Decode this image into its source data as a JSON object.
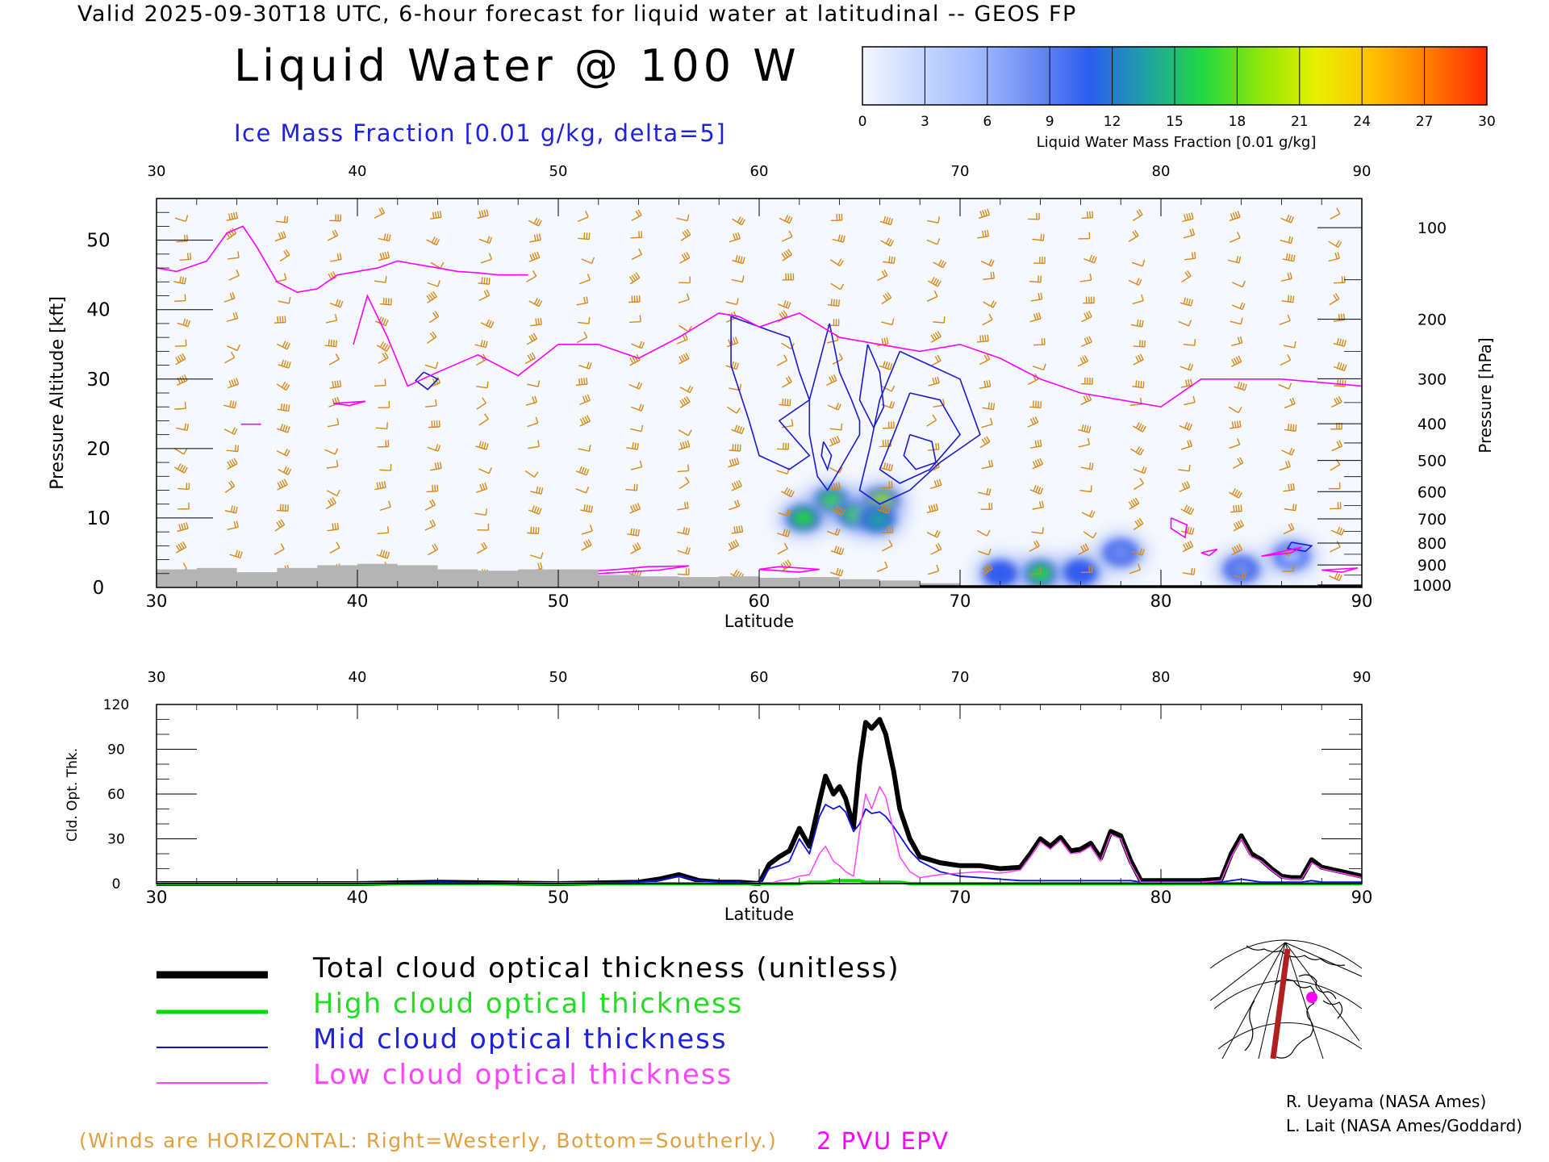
{
  "header": {
    "valid_line": "Valid 2025-09-30T18 UTC, 6-hour forecast for liquid water at latitudinal -- GEOS FP",
    "main_title": "Liquid Water @ 100 W",
    "subtitle": "Ice Mass Fraction [0.01 g/kg, delta=5]"
  },
  "colorbar": {
    "ticks": [
      "0",
      "3",
      "6",
      "9",
      "12",
      "15",
      "18",
      "21",
      "24",
      "27",
      "30"
    ],
    "label": "Liquid Water Mass Fraction [0.01 g/kg]",
    "colors": [
      "#f4f7ff",
      "#c7d7ff",
      "#a2bcff",
      "#6f8cf2",
      "#2d5cf0",
      "#1ea3a3",
      "#22d840",
      "#8ee60a",
      "#e8f000",
      "#ffc000",
      "#ff7a00",
      "#ff2a00"
    ]
  },
  "colors": {
    "wind": "#d48a18",
    "epv": "#ff00ff",
    "ice_contour": "#1a1ad0",
    "terrain": "#b4b4b4",
    "total": "#000000",
    "high": "#00dd00",
    "mid": "#1010e0",
    "low": "#ff44ff"
  },
  "chart_data": [
    {
      "type": "heatmap",
      "name_panel": "cross-section",
      "xlabel": "Latitude",
      "ylabel": "Pressure Altitude [kft]",
      "y2label": "Pressure [hPa]",
      "xlim": [
        30,
        90
      ],
      "ylim": [
        0,
        56
      ],
      "x_ticks": [
        "30",
        "40",
        "50",
        "60",
        "70",
        "80",
        "90"
      ],
      "y_ticks": [
        "0",
        "10",
        "20",
        "30",
        "40",
        "50"
      ],
      "pressure_ticks": [
        "100",
        "200",
        "300",
        "400",
        "500",
        "600",
        "700",
        "800",
        "900",
        "1000"
      ],
      "pressure_values": [
        100,
        200,
        300,
        400,
        500,
        600,
        700,
        800,
        900,
        1000
      ],
      "liquid_water_blobs": [
        {
          "lat": 63.6,
          "alt": 12.5,
          "value": 17
        },
        {
          "lat": 62.2,
          "alt": 10.0,
          "value": 15
        },
        {
          "lat": 64.8,
          "alt": 10.5,
          "value": 16
        },
        {
          "lat": 66.1,
          "alt": 12.5,
          "value": 18
        },
        {
          "lat": 65.9,
          "alt": 9.8,
          "value": 14
        },
        {
          "lat": 74.0,
          "alt": 2.0,
          "value": 16
        },
        {
          "lat": 72.0,
          "alt": 2.0,
          "value": 11
        },
        {
          "lat": 76.0,
          "alt": 2.2,
          "value": 12
        },
        {
          "lat": 78.0,
          "alt": 5.0,
          "value": 7
        },
        {
          "lat": 84.0,
          "alt": 2.6,
          "value": 9
        },
        {
          "lat": 86.5,
          "alt": 4.5,
          "value": 6
        }
      ],
      "epv_2pvu": {
        "lat": [
          30,
          31,
          32.5,
          33.5,
          34.3,
          35,
          36,
          37,
          38,
          39,
          40,
          41,
          42,
          43,
          44,
          45,
          46,
          47,
          48,
          48.5
        ],
        "alt": [
          46,
          45.5,
          47,
          51,
          52,
          49,
          44,
          42.5,
          43,
          45,
          45.5,
          46,
          47,
          46.5,
          46,
          45.5,
          45.3,
          45,
          45,
          45
        ]
      },
      "epv_2pvu_lower": {
        "lat": [
          39.8,
          40.5,
          41.5,
          42.5,
          44,
          46,
          48,
          50,
          52,
          54,
          56,
          58,
          59,
          60,
          62,
          64,
          66,
          68,
          70,
          72,
          74,
          76,
          78,
          80,
          82,
          84,
          86,
          88,
          90
        ],
        "alt": [
          35,
          42,
          36,
          29,
          31,
          33.5,
          30.5,
          35,
          35,
          33,
          36,
          39.5,
          39,
          37.5,
          39.5,
          36,
          35,
          34,
          35,
          33,
          30,
          28,
          27,
          26,
          30,
          30,
          30,
          29.5,
          29
        ]
      },
      "ice_contours_note": "Ice Mass Fraction [0.01 g/kg, delta=5]",
      "terrain": {
        "lat": [
          30,
          32,
          34,
          36,
          38,
          40,
          42,
          44,
          46,
          48,
          50,
          52,
          54,
          56,
          58,
          60,
          62,
          64,
          66,
          68,
          70,
          72,
          74,
          76,
          78,
          80,
          82,
          84,
          86,
          88,
          90
        ],
        "alt": [
          2.6,
          2.8,
          2.2,
          2.8,
          3.2,
          3.4,
          3.2,
          2.6,
          2.4,
          2.6,
          2.6,
          1.8,
          1.6,
          1.5,
          1.6,
          1.4,
          1.5,
          1.2,
          1.0,
          0.6,
          0.3,
          0.2,
          0.1,
          0.0,
          0.0,
          0.0,
          0.0,
          0.0,
          0.0,
          0.0,
          0.0
        ]
      }
    },
    {
      "type": "line",
      "name_panel": "optical-thickness",
      "xlabel": "Latitude",
      "ylabel": "Cld. Opt. Thk.",
      "xlim": [
        30,
        90
      ],
      "ylim": [
        0,
        120
      ],
      "x_ticks": [
        "30",
        "40",
        "50",
        "60",
        "70",
        "80",
        "90"
      ],
      "y_ticks": [
        "0",
        "30",
        "60",
        "90",
        "120"
      ],
      "x": [
        30,
        40,
        44,
        50,
        54,
        55,
        56,
        57,
        58,
        59,
        60,
        60.5,
        61,
        61.5,
        62,
        62.5,
        63,
        63.3,
        63.7,
        64,
        64.3,
        64.7,
        65,
        65.3,
        65.6,
        66,
        66.3,
        66.7,
        67,
        67.5,
        68,
        69,
        70,
        71,
        72,
        73,
        73.5,
        74,
        74.5,
        75,
        75.5,
        76,
        76.5,
        77,
        77.5,
        78,
        78.5,
        79,
        80,
        81,
        82,
        83,
        83.5,
        84,
        84.5,
        85,
        85.5,
        86,
        86.5,
        87,
        87.5,
        88,
        89,
        90
      ],
      "series": [
        {
          "name": "Total cloud optical thickness (unitless)",
          "key": "total",
          "values": [
            0,
            0,
            1,
            0,
            1,
            3,
            6,
            2,
            1,
            1,
            0,
            13,
            18,
            22,
            37,
            25,
            55,
            72,
            60,
            65,
            57,
            38,
            80,
            108,
            104,
            110,
            100,
            75,
            50,
            30,
            18,
            14,
            12,
            12,
            10,
            11,
            20,
            30,
            25,
            31,
            22,
            23,
            27,
            17,
            35,
            32,
            15,
            2,
            2,
            2,
            2,
            3,
            20,
            32,
            20,
            16,
            10,
            5,
            4,
            4,
            16,
            11,
            8,
            5
          ]
        },
        {
          "name": "High cloud optical thickness",
          "key": "high",
          "values": [
            0,
            0,
            0,
            0,
            0,
            0,
            0,
            0,
            0,
            0,
            0,
            0,
            0,
            0,
            0,
            1,
            1,
            1,
            2,
            2,
            2,
            2,
            2,
            1,
            1,
            1,
            1,
            1,
            1,
            0,
            0,
            0,
            0,
            0,
            0,
            0,
            0,
            0,
            0,
            0,
            0,
            0,
            0,
            0,
            0,
            0,
            0,
            0,
            0,
            0,
            0,
            0,
            0,
            0,
            0,
            0,
            0,
            0,
            0,
            0,
            0,
            0,
            0,
            0
          ]
        },
        {
          "name": "Mid cloud optical thickness",
          "key": "mid",
          "values": [
            0,
            0,
            1,
            0,
            1,
            2,
            5,
            2,
            1,
            1,
            0,
            10,
            12,
            15,
            30,
            20,
            45,
            53,
            50,
            52,
            48,
            35,
            40,
            50,
            47,
            48,
            45,
            38,
            32,
            22,
            15,
            8,
            5,
            4,
            3,
            2,
            2,
            2,
            2,
            2,
            2,
            2,
            2,
            2,
            2,
            2,
            2,
            1,
            1,
            1,
            1,
            1,
            2,
            3,
            2,
            1,
            1,
            1,
            1,
            1,
            2,
            1,
            1,
            1
          ]
        },
        {
          "name": "Low cloud optical thickness",
          "key": "low",
          "values": [
            0,
            0,
            0,
            0,
            0,
            0,
            0,
            0,
            0,
            0,
            0,
            0,
            2,
            3,
            5,
            6,
            20,
            25,
            15,
            12,
            8,
            5,
            35,
            60,
            50,
            65,
            58,
            35,
            18,
            8,
            4,
            6,
            7,
            8,
            7,
            9,
            18,
            28,
            23,
            29,
            20,
            21,
            25,
            15,
            33,
            30,
            13,
            1,
            1,
            1,
            1,
            2,
            18,
            30,
            18,
            15,
            9,
            4,
            3,
            3,
            14,
            10,
            7,
            4
          ]
        }
      ]
    }
  ],
  "legend": {
    "total": "Total cloud optical thickness (unitless)",
    "high": "High cloud optical thickness",
    "mid": "Mid cloud optical thickness",
    "low": "Low cloud optical thickness"
  },
  "footer": {
    "winds_note": "(Winds are HORIZONTAL: Right=Westerly, Bottom=Southerly.)",
    "epv_label": "2 PVU EPV",
    "credit1": "R. Ueyama (NASA Ames)",
    "credit2": "L. Lait (NASA Ames/Goddard)"
  }
}
